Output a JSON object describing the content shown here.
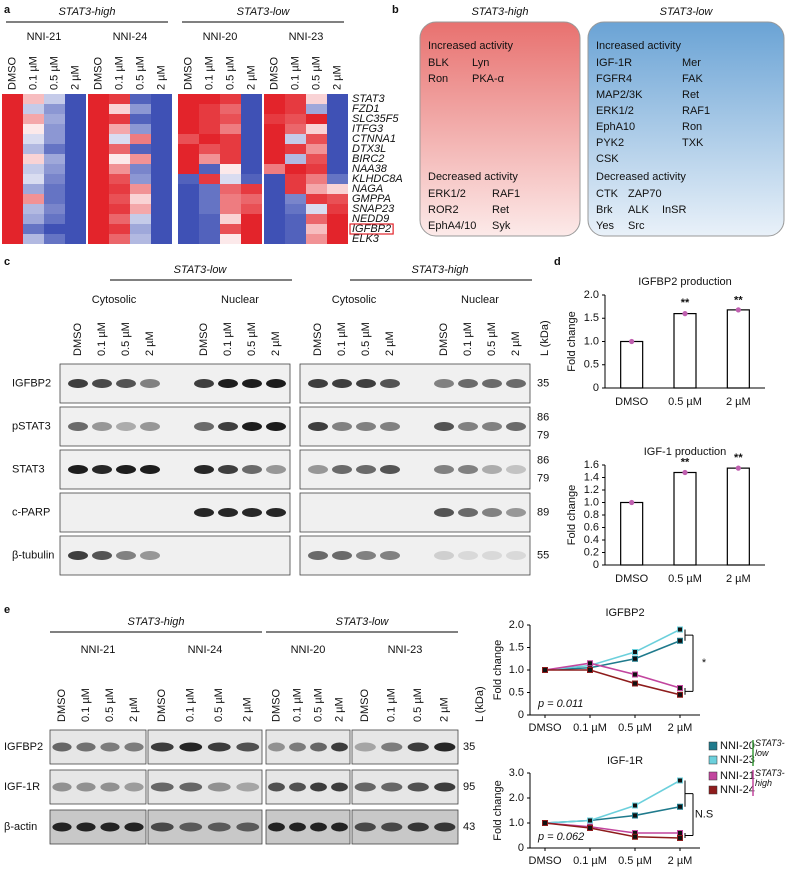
{
  "panel_labels": [
    "a",
    "b",
    "c",
    "d",
    "e"
  ],
  "kinase_activity": {
    "columns": [
      {
        "heading": "STAT3-high",
        "color": "#e8716f",
        "increased": {
          "title": "Increased activity",
          "items": [
            [
              "BLK",
              "Lyn"
            ],
            [
              "Ron",
              "PKA-α"
            ]
          ]
        },
        "decreased": {
          "title": "Decreased activity",
          "items": [
            [
              "ERK1/2",
              "RAF1"
            ],
            [
              "ROR2",
              "Ret"
            ],
            [
              "EphA4/10",
              "Syk"
            ]
          ]
        }
      },
      {
        "heading": "STAT3-low",
        "color": "#6aa3d5",
        "highlight": "IGF-1R",
        "highlight_color": "#e3242b",
        "increased": {
          "title": "Increased activity",
          "items": [
            [
              "IGF-1R",
              "Mer"
            ],
            [
              "FGFR4",
              "FAK"
            ],
            [
              "MAP2/3K",
              "Ret"
            ],
            [
              "ERK1/2",
              "RAF1"
            ],
            [
              "EphA10",
              "Ron"
            ],
            [
              "PYK2",
              "TXK"
            ],
            [
              "CSK"
            ]
          ]
        },
        "decreased": {
          "title": "Decreased activity",
          "items": [
            [
              "CTK",
              "ZAP70"
            ],
            [
              "Brk",
              "ALK",
              "InSR"
            ],
            [
              "Yes",
              "Src"
            ]
          ]
        }
      }
    ]
  },
  "blot_c": {
    "groups": [
      {
        "name": "STAT3-low",
        "fractions": [
          "Cytosolic",
          "Nuclear"
        ]
      },
      {
        "name": "STAT3-high",
        "fractions": [
          "Cytosolic",
          "Nuclear"
        ]
      }
    ],
    "lanes": [
      "DMSO",
      "0.1 µM",
      "0.5 µM",
      "2 µM"
    ],
    "ladder": "L (kDa)",
    "proteins": [
      {
        "name": "IGFBP2",
        "kda": [
          35
        ]
      },
      {
        "name": "pSTAT3",
        "kda": [
          86,
          79
        ]
      },
      {
        "name": "STAT3",
        "kda": [
          86,
          79
        ]
      },
      {
        "name": "c-PARP",
        "kda": [
          89
        ]
      },
      {
        "name": "β-tubulin",
        "kda": [
          55
        ]
      }
    ]
  },
  "blot_e": {
    "groups": [
      {
        "name": "STAT3-high",
        "cell_lines": [
          "NNI-21",
          "NNI-24"
        ]
      },
      {
        "name": "STAT3-low",
        "cell_lines": [
          "NNI-20",
          "NNI-23"
        ]
      }
    ],
    "lanes": [
      "DMSO",
      "0.1 µM",
      "0.5 µM",
      "2 µM"
    ],
    "ladder": "L (kDa)",
    "proteins": [
      {
        "name": "IGFBP2",
        "kda": [
          35
        ]
      },
      {
        "name": "IGF-1R",
        "kda": [
          95
        ]
      },
      {
        "name": "β-actin",
        "kda": [
          43
        ]
      }
    ]
  },
  "chart_data": [
    {
      "type": "heatmap",
      "columns": [
        "DMSO",
        "0.1 µM",
        "0.5 µM",
        "2 µM"
      ],
      "rows": [
        "STAT3",
        "FZD1",
        "SLC35F5",
        "ITFG3",
        "CTNNA1",
        "DTX3L",
        "BIRC2",
        "NAA38",
        "KLHDC8A",
        "NAGA",
        "GMPPA",
        "SNAP23",
        "NEDD9",
        "IGFBP2",
        "ELK3"
      ],
      "zlim": [
        -1,
        1
      ],
      "colors": {
        "low": "#3f51b5",
        "mid": "#ffffff",
        "high": "#e3242b"
      },
      "highlight_row": "IGFBP2",
      "highlight_color": "#e3242b",
      "groups": [
        {
          "name": "STAT3-high",
          "series": [
            {
              "name": "NNI-21",
              "values": [
                [
                  1,
                  0.3,
                  -0.3,
                  -1
                ],
                [
                  1,
                  -0.3,
                  -0.6,
                  -1
                ],
                [
                  1,
                  0.4,
                  -0.5,
                  -1
                ],
                [
                  1,
                  0.1,
                  -0.6,
                  -1
                ],
                [
                  1,
                  -0.2,
                  -0.6,
                  -1
                ],
                [
                  1,
                  -0.4,
                  -0.8,
                  -1
                ],
                [
                  1,
                  0.2,
                  -0.5,
                  -1
                ],
                [
                  1,
                  -0.3,
                  -0.6,
                  -1
                ],
                [
                  1,
                  -0.2,
                  -0.7,
                  -1
                ],
                [
                  1,
                  -0.5,
                  -0.8,
                  -1
                ],
                [
                  1,
                  0.5,
                  -0.8,
                  -1
                ],
                [
                  1,
                  -0.4,
                  -0.7,
                  -1
                ],
                [
                  1,
                  -0.5,
                  -0.8,
                  -1
                ],
                [
                  1,
                  -0.8,
                  -1,
                  -1
                ],
                [
                  1,
                  -0.4,
                  -0.8,
                  -1
                ]
              ]
            },
            {
              "name": "NNI-24",
              "values": [
                [
                  1,
                  0.9,
                  -0.9,
                  -1
                ],
                [
                  1,
                  0.2,
                  -0.6,
                  -1
                ],
                [
                  1,
                  0.9,
                  -0.9,
                  -1
                ],
                [
                  1,
                  0.4,
                  -0.6,
                  -1
                ],
                [
                  1,
                  -0.2,
                  0.6,
                  -1
                ],
                [
                  1,
                  0.7,
                  -0.9,
                  -1
                ],
                [
                  1,
                  0.1,
                  0.5,
                  -1
                ],
                [
                  1,
                  0.5,
                  -0.7,
                  -1
                ],
                [
                  1,
                  0.8,
                  -0.6,
                  -1
                ],
                [
                  1,
                  0.9,
                  0.5,
                  -1
                ],
                [
                  1,
                  0.8,
                  0.2,
                  -1
                ],
                [
                  1,
                  0.9,
                  0.4,
                  -1
                ],
                [
                  1,
                  0.7,
                  -0.3,
                  -1
                ],
                [
                  1,
                  0.9,
                  -0.5,
                  -1
                ],
                [
                  1,
                  0.7,
                  -0.4,
                  -1
                ]
              ]
            }
          ]
        },
        {
          "name": "STAT3-low",
          "series": [
            {
              "name": "NNI-20",
              "values": [
                [
                  1,
                  1,
                  0.9,
                  -1
                ],
                [
                  1,
                  0.9,
                  0.7,
                  -1
                ],
                [
                  1,
                  0.9,
                  0.8,
                  -1
                ],
                [
                  1,
                  0.9,
                  0.6,
                  -1
                ],
                [
                  0.8,
                  1,
                  0.9,
                  -1
                ],
                [
                  1,
                  0.8,
                  0.9,
                  -1
                ],
                [
                  1,
                  0.5,
                  0.9,
                  -1
                ],
                [
                  1,
                  -0.9,
                  0.1,
                  -1
                ],
                [
                  -0.9,
                  0.9,
                  -0.2,
                  -0.9
                ],
                [
                  -1,
                  -0.8,
                  0.7,
                  0.9
                ],
                [
                  -1,
                  -0.8,
                  0.6,
                  0.7
                ],
                [
                  -1,
                  -0.8,
                  0.6,
                  0.8
                ],
                [
                  -1,
                  -0.9,
                  0.2,
                  1
                ],
                [
                  -1,
                  -0.9,
                  0.8,
                  1
                ],
                [
                  -1,
                  -0.9,
                  0.1,
                  1
                ]
              ]
            },
            {
              "name": "NNI-23",
              "values": [
                [
                  1,
                  0.9,
                  0.2,
                  -1
                ],
                [
                  1,
                  0.9,
                  -0.5,
                  -1
                ],
                [
                  0.9,
                  0.8,
                  1,
                  -1
                ],
                [
                  1,
                  0.7,
                  0.2,
                  -1
                ],
                [
                  1,
                  -0.3,
                  0.8,
                  -1
                ],
                [
                  1,
                  0.9,
                  0.5,
                  -1
                ],
                [
                  1,
                  -0.4,
                  0.8,
                  -1
                ],
                [
                  0.6,
                  1,
                  0.9,
                  -1
                ],
                [
                  -1,
                  0.9,
                  0.6,
                  -0.8
                ],
                [
                  -1,
                  0.9,
                  0.4,
                  0.2
                ],
                [
                  -1,
                  -0.7,
                  0.9,
                  0.8
                ],
                [
                  -1,
                  -0.8,
                  -0.2,
                  0.9
                ],
                [
                  -1,
                  -0.9,
                  0.7,
                  1
                ],
                [
                  -1,
                  -0.9,
                  0.3,
                  1
                ],
                [
                  -1,
                  -0.9,
                  0.5,
                  1
                ]
              ]
            }
          ]
        }
      ]
    },
    {
      "type": "bar",
      "title": "IGFBP2 production",
      "ylabel": "Fold change",
      "categories": [
        "DMSO",
        "0.5 µM",
        "2 µM"
      ],
      "values": [
        1.0,
        1.6,
        1.68
      ],
      "errors": [
        0.02,
        0.05,
        0.03
      ],
      "annotations": [
        null,
        "**",
        "**"
      ],
      "color": "#ffffff",
      "edge_color": "#000000",
      "marker_color": "#c060b0",
      "ylim": [
        0,
        2.0
      ],
      "yticks": [
        0,
        0.5,
        {
          "value": 1,
          "label": "1.0"
        },
        1.5,
        {
          "value": 2,
          "label": "2.0"
        }
      ]
    },
    {
      "type": "bar",
      "title": "IGF-1 production",
      "ylabel": "Fold change",
      "categories": [
        "DMSO",
        "0.5 µM",
        "2 µM"
      ],
      "values": [
        1.0,
        1.48,
        1.55
      ],
      "errors": [
        0.02,
        0.03,
        0.03
      ],
      "annotations": [
        null,
        "**",
        "**"
      ],
      "color": "#ffffff",
      "edge_color": "#000000",
      "marker_color": "#c060b0",
      "ylim": [
        0,
        1.6
      ],
      "yticks": [
        0,
        0.2,
        0.4,
        0.6,
        0.8,
        {
          "value": 1,
          "label": "1.0"
        },
        1.2,
        1.4,
        1.6
      ]
    },
    {
      "type": "line",
      "title": "IGFBP2",
      "ylabel": "Fold change",
      "categories": [
        "DMSO",
        "0.1 µM",
        "0.5 µM",
        "2 µM"
      ],
      "series": [
        {
          "name": "NNI-20",
          "color": "#1f7a8c",
          "values": [
            1.0,
            1.05,
            1.25,
            1.65
          ]
        },
        {
          "name": "NNI-23",
          "color": "#6cd0dc",
          "values": [
            1.0,
            1.1,
            1.4,
            1.9
          ]
        },
        {
          "name": "NNI-21",
          "color": "#c2459e",
          "values": [
            1.0,
            1.15,
            0.9,
            0.6
          ]
        },
        {
          "name": "NNI-24",
          "color": "#8e1c1c",
          "values": [
            1.0,
            1.0,
            0.7,
            0.45
          ]
        }
      ],
      "annotation": "p = 0.011",
      "significance": "*",
      "legend_groups": [
        {
          "label": "STAT3-low",
          "color": "#3a9a3a",
          "members": [
            "NNI-20",
            "NNI-23"
          ]
        },
        {
          "label": "STAT3-high",
          "color": "#c2459e",
          "members": [
            "NNI-21",
            "NNI-24"
          ]
        }
      ],
      "ylim": [
        0,
        2.0
      ],
      "yticks": [
        0,
        0.5,
        {
          "value": 1,
          "label": "1.0"
        },
        1.5,
        {
          "value": 2,
          "label": "2.0"
        }
      ]
    },
    {
      "type": "line",
      "title": "IGF-1R",
      "ylabel": "Fold change",
      "categories": [
        "DMSO",
        "0.1 µM",
        "0.5 µM",
        "2 µM"
      ],
      "series": [
        {
          "name": "NNI-20",
          "color": "#1f7a8c",
          "values": [
            1.0,
            1.1,
            1.3,
            1.65
          ]
        },
        {
          "name": "NNI-23",
          "color": "#6cd0dc",
          "values": [
            1.0,
            1.1,
            1.7,
            2.7
          ]
        },
        {
          "name": "NNI-21",
          "color": "#c2459e",
          "values": [
            1.0,
            0.85,
            0.6,
            0.6
          ]
        },
        {
          "name": "NNI-24",
          "color": "#8e1c1c",
          "values": [
            1.0,
            0.8,
            0.45,
            0.4
          ]
        }
      ],
      "annotation": "p = 0.062",
      "significance": "N.S",
      "ylim": [
        0,
        3.0
      ],
      "yticks": [
        0,
        {
          "value": 1,
          "label": "1.0"
        },
        {
          "value": 2,
          "label": "2.0"
        },
        {
          "value": 3,
          "label": "3.0"
        }
      ]
    }
  ]
}
